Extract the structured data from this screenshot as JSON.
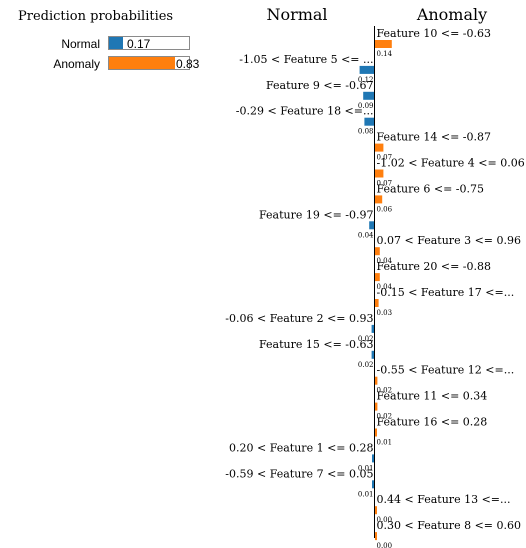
{
  "prediction_probabilities": {
    "title": "Prediction probabilities",
    "classes": [
      {
        "label": "Normal",
        "value": 0.17,
        "value_text": "0.17",
        "color": "#1f77b4"
      },
      {
        "label": "Anomaly",
        "value": 0.83,
        "value_text": "0.83",
        "color": "#ff7f0e"
      }
    ]
  },
  "chart_data": {
    "type": "bar",
    "orientation": "horizontal-diverging",
    "left_class": {
      "name": "Normal",
      "color": "#1f77b4"
    },
    "right_class": {
      "name": "Anomaly",
      "color": "#ff7f0e"
    },
    "features": [
      {
        "label": "Feature 10 <= -0.63",
        "weight": 0.14,
        "weight_text": "0.14",
        "side": "Anomaly"
      },
      {
        "label": "-1.05 < Feature 5 <= ...",
        "weight": 0.12,
        "weight_text": "0.12",
        "side": "Normal"
      },
      {
        "label": "Feature 9 <= -0.67",
        "weight": 0.09,
        "weight_text": "0.09",
        "side": "Normal"
      },
      {
        "label": "-0.29 < Feature 18 <=...",
        "weight": 0.08,
        "weight_text": "0.08",
        "side": "Normal"
      },
      {
        "label": "Feature 14 <= -0.87",
        "weight": 0.07,
        "weight_text": "0.07",
        "side": "Anomaly"
      },
      {
        "label": "-1.02 < Feature 4 <= 0.06",
        "weight": 0.07,
        "weight_text": "0.07",
        "side": "Anomaly"
      },
      {
        "label": "Feature 6 <= -0.75",
        "weight": 0.06,
        "weight_text": "0.06",
        "side": "Anomaly"
      },
      {
        "label": "Feature 19 <= -0.97",
        "weight": 0.04,
        "weight_text": "0.04",
        "side": "Normal"
      },
      {
        "label": "0.07 < Feature 3 <= 0.96",
        "weight": 0.04,
        "weight_text": "0.04",
        "side": "Anomaly"
      },
      {
        "label": "Feature 20 <= -0.88",
        "weight": 0.04,
        "weight_text": "0.04",
        "side": "Anomaly"
      },
      {
        "label": "-0.15 < Feature 17 <=...",
        "weight": 0.03,
        "weight_text": "0.03",
        "side": "Anomaly"
      },
      {
        "label": "-0.06 < Feature 2 <= 0.93",
        "weight": 0.02,
        "weight_text": "0.02",
        "side": "Normal"
      },
      {
        "label": "Feature 15 <= -0.63",
        "weight": 0.02,
        "weight_text": "0.02",
        "side": "Normal"
      },
      {
        "label": "-0.55 < Feature 12 <=...",
        "weight": 0.02,
        "weight_text": "0.02",
        "side": "Anomaly"
      },
      {
        "label": "Feature 11 <= 0.34",
        "weight": 0.02,
        "weight_text": "0.02",
        "side": "Anomaly"
      },
      {
        "label": "Feature 16 <= 0.28",
        "weight": 0.01,
        "weight_text": "0.01",
        "side": "Anomaly"
      },
      {
        "label": "0.20 < Feature 1 <= 0.28",
        "weight": 0.01,
        "weight_text": "0.01",
        "side": "Normal"
      },
      {
        "label": "-0.59 < Feature 7 <= 0.05",
        "weight": 0.01,
        "weight_text": "0.01",
        "side": "Normal"
      },
      {
        "label": "0.44 < Feature 13 <=...",
        "weight": 0.0,
        "weight_text": "0.00",
        "side": "Anomaly"
      },
      {
        "label": "0.30 < Feature 8 <= 0.60",
        "weight": 0.0,
        "weight_text": "0.00",
        "side": "Anomaly"
      }
    ]
  }
}
